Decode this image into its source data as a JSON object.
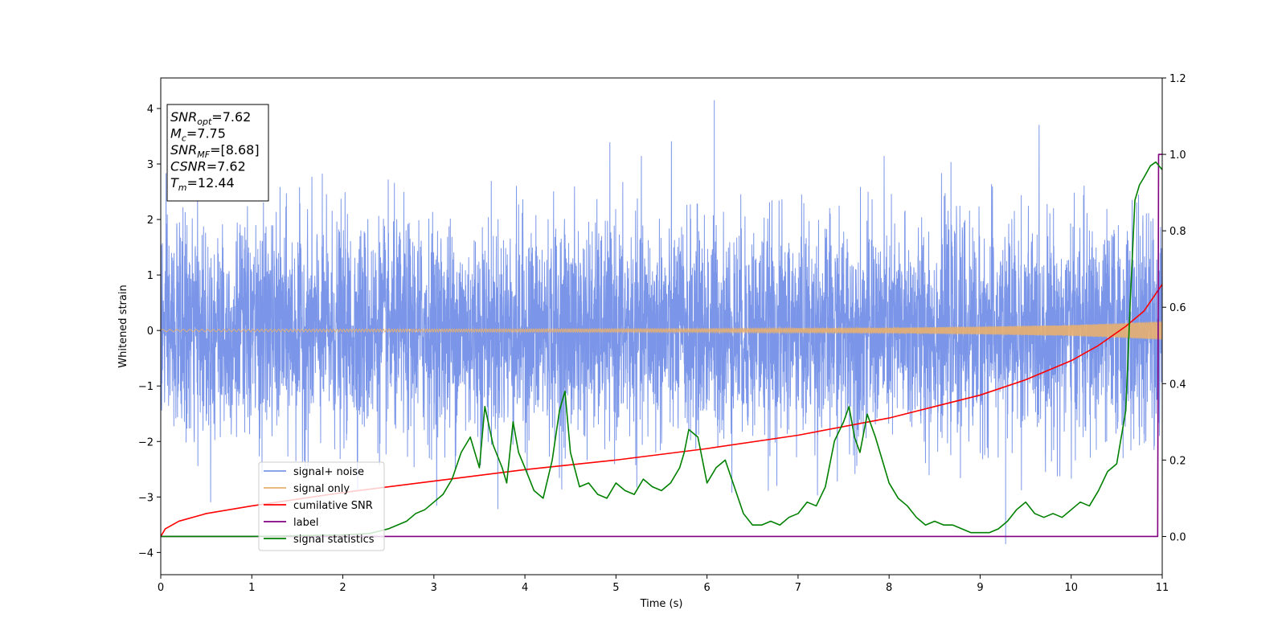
{
  "chart_data": {
    "type": "line",
    "title": "",
    "xlabel": "Time (s)",
    "ylabel": "Whitened strain",
    "xlim": [
      0,
      11
    ],
    "ylim": [
      -4.4,
      4.55
    ],
    "ylim_right": [
      -0.1,
      1.2
    ],
    "x_ticks": [
      0,
      1,
      2,
      3,
      4,
      5,
      6,
      7,
      8,
      9,
      10,
      11
    ],
    "y_ticks": [
      -4,
      -3,
      -2,
      -1,
      0,
      1,
      2,
      3,
      4
    ],
    "y_ticks_labels": [
      "−4",
      "−3",
      "−2",
      "−1",
      "0",
      "1",
      "2",
      "3",
      "4"
    ],
    "y_right_ticks": [
      0.0,
      0.2,
      0.4,
      0.6,
      0.8,
      1.0,
      1.2
    ],
    "y_right_ticks_labels": [
      "0.0",
      "0.2",
      "0.4",
      "0.6",
      "0.8",
      "1.0",
      "1.2"
    ],
    "grid": false,
    "legend_position": "bottom-left",
    "annotation": [
      {
        "var": "SNR",
        "sub": "opt",
        "text": "=7.62"
      },
      {
        "var": "M",
        "sub": "c",
        "text": "=7.75"
      },
      {
        "var": "SNR",
        "sub": "MF",
        "text": "=[8.68]"
      },
      {
        "var": "CSNR",
        "sub": "",
        "text": "=7.62"
      },
      {
        "var": "T",
        "sub": "m",
        "text": "=12.44"
      }
    ],
    "series": [
      {
        "name": "signal+ noise",
        "color": "#7b96e8",
        "axis": "left",
        "description_values": {
          "mean": 0,
          "std": 1.0,
          "max": 4.15,
          "max_at": 6.08,
          "min": -3.85,
          "min_at": 9.28
        }
      },
      {
        "name": "signal only",
        "color": "#e8b070",
        "axis": "left",
        "envelope": {
          "x": [
            0,
            2,
            4,
            6,
            8,
            9,
            10,
            10.5,
            11
          ],
          "amp": [
            0.02,
            0.025,
            0.03,
            0.035,
            0.05,
            0.07,
            0.1,
            0.13,
            0.17
          ]
        }
      },
      {
        "name": "cumilative SNR",
        "color": "#ff0000",
        "axis": "right",
        "x": [
          0,
          0.05,
          0.2,
          0.5,
          1,
          2,
          3,
          4,
          5,
          6,
          7,
          8,
          8.5,
          9,
          9.5,
          10,
          10.3,
          10.6,
          10.8,
          11
        ],
        "y": [
          0.0,
          0.02,
          0.04,
          0.06,
          0.08,
          0.115,
          0.145,
          0.175,
          0.2,
          0.23,
          0.265,
          0.31,
          0.34,
          0.37,
          0.41,
          0.46,
          0.5,
          0.55,
          0.59,
          0.66
        ]
      },
      {
        "name": "label",
        "color": "#800080",
        "axis": "right",
        "x": [
          0,
          10.95,
          10.96,
          11
        ],
        "y": [
          0,
          0,
          1.0,
          1.0
        ]
      },
      {
        "name": "signal statistics",
        "color": "#008000",
        "axis": "right",
        "x": [
          0,
          1,
          1.5,
          2,
          2.3,
          2.5,
          2.6,
          2.7,
          2.8,
          2.9,
          3.0,
          3.1,
          3.2,
          3.3,
          3.4,
          3.5,
          3.56,
          3.65,
          3.75,
          3.8,
          3.87,
          3.93,
          4.0,
          4.1,
          4.2,
          4.3,
          4.38,
          4.44,
          4.5,
          4.6,
          4.7,
          4.8,
          4.9,
          5.0,
          5.1,
          5.2,
          5.3,
          5.4,
          5.5,
          5.6,
          5.7,
          5.75,
          5.8,
          5.9,
          6.0,
          6.1,
          6.2,
          6.3,
          6.4,
          6.5,
          6.6,
          6.7,
          6.8,
          6.9,
          7.0,
          7.1,
          7.2,
          7.3,
          7.4,
          7.5,
          7.56,
          7.62,
          7.68,
          7.76,
          7.85,
          7.9,
          8.0,
          8.1,
          8.2,
          8.3,
          8.4,
          8.5,
          8.6,
          8.7,
          8.8,
          8.9,
          9.0,
          9.1,
          9.2,
          9.3,
          9.4,
          9.5,
          9.6,
          9.7,
          9.8,
          9.9,
          10.0,
          10.1,
          10.2,
          10.3,
          10.4,
          10.5,
          10.6,
          10.65,
          10.7,
          10.75,
          10.8,
          10.87,
          10.93,
          11.0
        ],
        "y": [
          0.0,
          0.0,
          0.002,
          0.004,
          0.008,
          0.02,
          0.03,
          0.04,
          0.06,
          0.07,
          0.09,
          0.11,
          0.15,
          0.22,
          0.26,
          0.18,
          0.34,
          0.24,
          0.18,
          0.14,
          0.3,
          0.22,
          0.18,
          0.12,
          0.1,
          0.2,
          0.33,
          0.38,
          0.22,
          0.13,
          0.14,
          0.11,
          0.1,
          0.14,
          0.12,
          0.11,
          0.15,
          0.13,
          0.12,
          0.14,
          0.18,
          0.22,
          0.28,
          0.26,
          0.14,
          0.18,
          0.2,
          0.13,
          0.06,
          0.03,
          0.03,
          0.04,
          0.03,
          0.05,
          0.06,
          0.09,
          0.08,
          0.13,
          0.25,
          0.3,
          0.34,
          0.26,
          0.22,
          0.32,
          0.26,
          0.22,
          0.14,
          0.1,
          0.08,
          0.05,
          0.03,
          0.04,
          0.03,
          0.03,
          0.02,
          0.01,
          0.01,
          0.01,
          0.02,
          0.04,
          0.07,
          0.09,
          0.06,
          0.05,
          0.06,
          0.05,
          0.07,
          0.09,
          0.08,
          0.12,
          0.17,
          0.19,
          0.33,
          0.62,
          0.88,
          0.92,
          0.94,
          0.97,
          0.98,
          0.96
        ]
      }
    ]
  }
}
